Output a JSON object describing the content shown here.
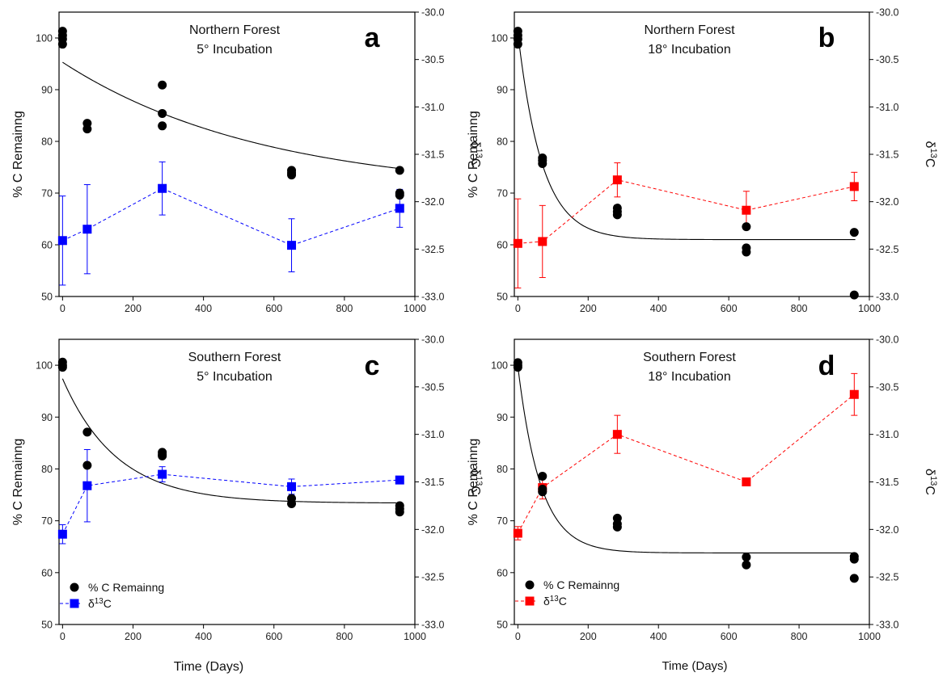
{
  "figure": {
    "xlabel_bottom_left": "Time (Days)",
    "xlabel_bottom_right": "Time (Days)"
  },
  "colors": {
    "blue": "#0000ff",
    "red": "#ff0000",
    "black": "#000000"
  },
  "legend": {
    "c_label": "% C Remainng",
    "d13c_prefix": "δ",
    "d13c_sup": "13",
    "d13c_suffix": "C"
  },
  "chart_data": [
    {
      "id": "a",
      "type": "scatter",
      "letter": "a",
      "title_line1": "Northern Forest",
      "title_line2": "5° Incubation",
      "ylabel_left": "% C Remainng",
      "ylabel_right_prefix": "δ",
      "ylabel_right_sup": "13",
      "ylabel_right_suffix": "C",
      "xlim": [
        0,
        1000
      ],
      "ylim_left": [
        50,
        105
      ],
      "ylim_right": [
        -33.0,
        -30.0
      ],
      "xticks": [
        0,
        200,
        400,
        600,
        800,
        1000
      ],
      "yticks_left": [
        50,
        60,
        70,
        80,
        90,
        100
      ],
      "yticks_right": [
        "-30.0",
        "-30.5",
        "-31.0",
        "-31.5",
        "-32.0",
        "-32.5",
        "-33.0"
      ],
      "accent": "#0000ff",
      "legend_shown": false,
      "c_remaining": {
        "name": "% C Remainng",
        "x": [
          0,
          0,
          0,
          0,
          70,
          70,
          283,
          283,
          283,
          650,
          650,
          650,
          957,
          957,
          957
        ],
        "y": [
          101.3,
          100.5,
          99.8,
          98.8,
          83.5,
          82.4,
          90.9,
          85.4,
          83.0,
          74.4,
          73.9,
          73.5,
          74.4,
          70.0,
          69.6
        ]
      },
      "fit": {
        "a": 70.0,
        "b": 25.3,
        "k": 0.00175
      },
      "d13c": {
        "name": "δ13C",
        "x": [
          0,
          70,
          283,
          650,
          957
        ],
        "y": [
          -32.41,
          -32.29,
          -31.86,
          -32.46,
          -32.07
        ],
        "err": [
          0.47,
          0.47,
          0.28,
          0.28,
          0.2
        ]
      }
    },
    {
      "id": "b",
      "type": "scatter",
      "letter": "b",
      "title_line1": "Northern Forest",
      "title_line2": "18° Incubation",
      "ylabel_left": "% C Remainng",
      "ylabel_right_prefix": "δ",
      "ylabel_right_sup": "13",
      "ylabel_right_suffix": "C",
      "xlim": [
        0,
        1000
      ],
      "ylim_left": [
        50,
        105
      ],
      "ylim_right": [
        -33.0,
        -30.0
      ],
      "xticks": [
        0,
        200,
        400,
        600,
        800,
        1000
      ],
      "yticks_left": [
        50,
        60,
        70,
        80,
        90,
        100
      ],
      "yticks_right": [
        "-30.0",
        "-30.5",
        "-31.0",
        "-31.5",
        "-32.0",
        "-32.5",
        "-33.0"
      ],
      "accent": "#ff0000",
      "legend_shown": false,
      "c_remaining": {
        "name": "% C Remainng",
        "x": [
          0,
          0,
          0,
          0,
          70,
          70,
          70,
          283,
          283,
          283,
          650,
          650,
          650,
          957,
          957
        ],
        "y": [
          101.3,
          100.5,
          99.8,
          98.8,
          76.8,
          76.3,
          75.7,
          67.1,
          66.4,
          65.8,
          63.5,
          59.4,
          58.6,
          62.4,
          50.3
        ]
      },
      "fit": {
        "a": 61.0,
        "b": 40.0,
        "k": 0.0145
      },
      "d13c": {
        "name": "δ13C",
        "x": [
          0,
          70,
          283,
          650,
          957
        ],
        "y": [
          -32.44,
          -32.42,
          -31.77,
          -32.09,
          -31.84
        ],
        "err": [
          0.47,
          0.38,
          0.18,
          0.2,
          0.15
        ]
      }
    },
    {
      "id": "c",
      "type": "scatter",
      "letter": "c",
      "title_line1": "Southern Forest",
      "title_line2": "5° Incubation",
      "ylabel_left": "% C Remainng",
      "ylabel_right_prefix": "δ",
      "ylabel_right_sup": "13",
      "ylabel_right_suffix": "C",
      "xlim": [
        0,
        1000
      ],
      "ylim_left": [
        50,
        105
      ],
      "ylim_right": [
        -33.0,
        -30.0
      ],
      "xticks": [
        0,
        200,
        400,
        600,
        800,
        1000
      ],
      "yticks_left": [
        50,
        60,
        70,
        80,
        90,
        100
      ],
      "yticks_right": [
        "-30.0",
        "-30.5",
        "-31.0",
        "-31.5",
        "-32.0",
        "-32.5",
        "-33.0"
      ],
      "accent": "#0000ff",
      "legend_shown": true,
      "c_remaining": {
        "name": "% C Remainng",
        "x": [
          0,
          0,
          0,
          70,
          70,
          283,
          283,
          283,
          650,
          650,
          957,
          957,
          957
        ],
        "y": [
          100.6,
          100.0,
          99.6,
          87.1,
          80.7,
          83.2,
          82.8,
          82.5,
          74.3,
          73.3,
          72.9,
          72.3,
          71.7
        ]
      },
      "fit": {
        "a": 73.4,
        "b": 24.0,
        "k": 0.0065
      },
      "d13c": {
        "name": "δ13C",
        "x": [
          0,
          70,
          283,
          650,
          957
        ],
        "y": [
          -32.05,
          -31.54,
          -31.42,
          -31.55,
          -31.48
        ],
        "err": [
          0.1,
          0.38,
          0.08,
          0.08,
          0.02
        ]
      }
    },
    {
      "id": "d",
      "type": "scatter",
      "letter": "d",
      "title_line1": "Southern Forest",
      "title_line2": "18° Incubation",
      "ylabel_left": "% C Remainng",
      "ylabel_right_prefix": "δ",
      "ylabel_right_sup": "13",
      "ylabel_right_suffix": "C",
      "xlim": [
        0,
        1000
      ],
      "ylim_left": [
        50,
        105
      ],
      "ylim_right": [
        -33.0,
        -30.0
      ],
      "xticks": [
        0,
        200,
        400,
        600,
        800,
        1000
      ],
      "yticks_left": [
        50,
        60,
        70,
        80,
        90,
        100
      ],
      "yticks_right": [
        "-30.0",
        "-30.5",
        "-31.0",
        "-31.5",
        "-32.0",
        "-32.5",
        "-33.0"
      ],
      "accent": "#ff0000",
      "legend_shown": true,
      "c_remaining": {
        "name": "% C Remainng",
        "x": [
          0,
          0,
          0,
          70,
          70,
          70,
          283,
          283,
          283,
          650,
          650,
          957,
          957,
          957
        ],
        "y": [
          100.5,
          100.0,
          99.6,
          78.6,
          76.1,
          75.6,
          70.5,
          69.4,
          68.8,
          63.0,
          61.5,
          63.1,
          62.6,
          58.9
        ]
      },
      "fit": {
        "a": 63.8,
        "b": 36.0,
        "k": 0.0155
      },
      "d13c": {
        "name": "δ13C",
        "x": [
          0,
          70,
          283,
          650,
          957
        ],
        "y": [
          -32.04,
          -31.56,
          -31.0,
          -31.5,
          -30.58
        ],
        "err": [
          0.07,
          0.12,
          0.2,
          0.02,
          0.22
        ]
      }
    }
  ]
}
